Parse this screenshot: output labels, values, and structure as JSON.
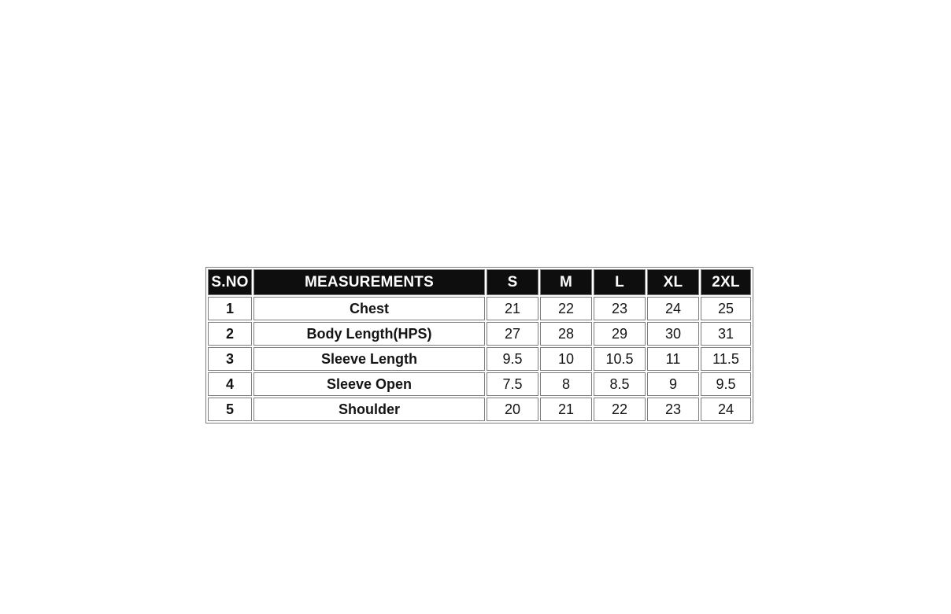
{
  "colors": {
    "header_background": "#0e0e0e",
    "header_text": "#ffffff",
    "grid_border": "#7d7d7d",
    "body_text": "#141414",
    "page_background": "#ffffff"
  },
  "chart_data": {
    "type": "table",
    "columns": [
      "S.NO",
      "MEASUREMENTS",
      "S",
      "M",
      "L",
      "XL",
      "2XL"
    ],
    "rows": [
      {
        "sno": "1",
        "measurement": "Chest",
        "values": [
          "21",
          "22",
          "23",
          "24",
          "25"
        ]
      },
      {
        "sno": "2",
        "measurement": "Body Length(HPS)",
        "values": [
          "27",
          "28",
          "29",
          "30",
          "31"
        ]
      },
      {
        "sno": "3",
        "measurement": "Sleeve Length",
        "values": [
          "9.5",
          "10",
          "10.5",
          "11",
          "11.5"
        ]
      },
      {
        "sno": "4",
        "measurement": "Sleeve Open",
        "values": [
          "7.5",
          "8",
          "8.5",
          "9",
          "9.5"
        ]
      },
      {
        "sno": "5",
        "measurement": "Shoulder",
        "values": [
          "20",
          "21",
          "22",
          "23",
          "24"
        ]
      }
    ]
  }
}
